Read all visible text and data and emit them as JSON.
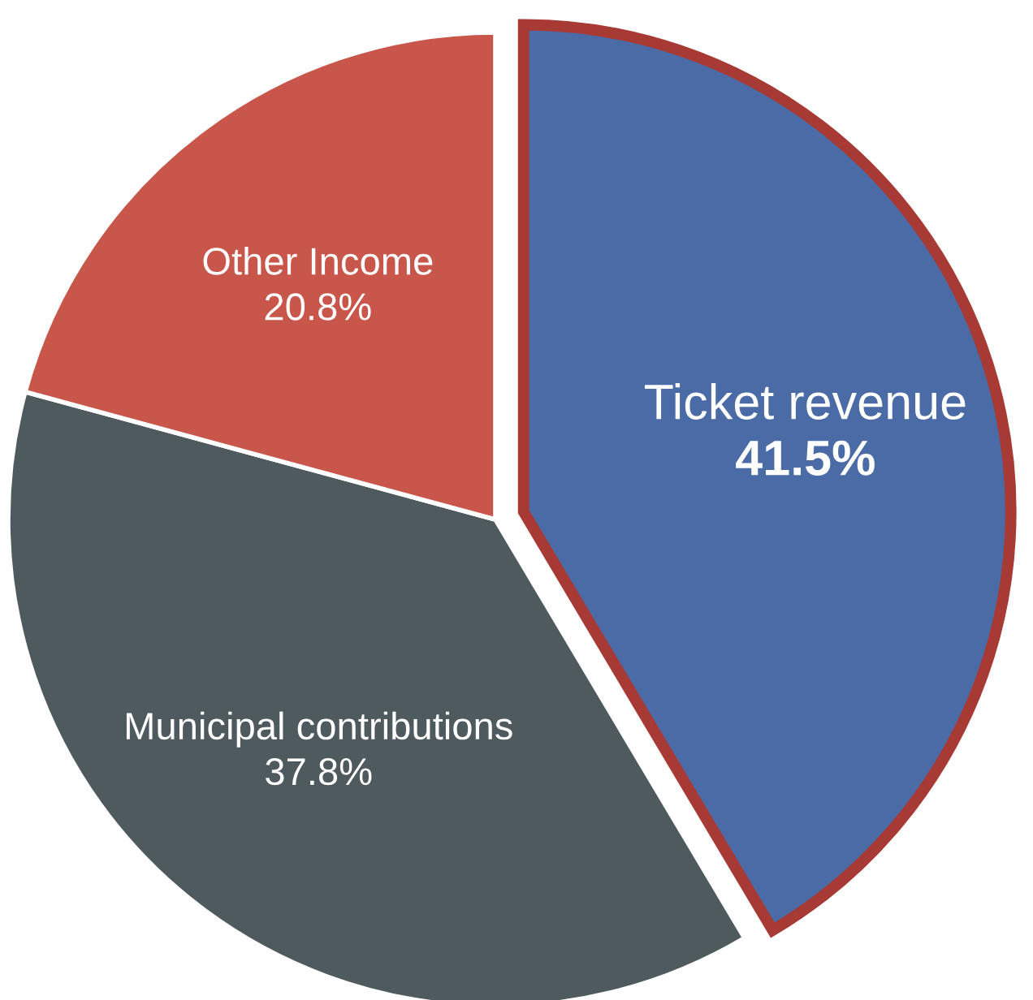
{
  "chart_data": {
    "type": "pie",
    "categories": [
      "Ticket revenue",
      "Municipal contributions",
      "Other Income"
    ],
    "values": [
      41.5,
      37.8,
      20.8
    ],
    "colors": [
      "#4a6ba6",
      "#4f5a5f",
      "#c8564a"
    ],
    "value_labels": [
      "41.5%",
      "37.8%",
      "20.8%"
    ]
  }
}
